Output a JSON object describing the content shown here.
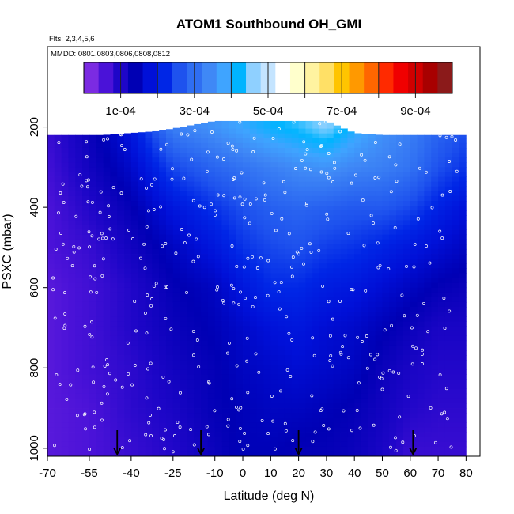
{
  "chart_data": {
    "type": "heatmap",
    "title": "ATOM1 Southbound OH_GMI",
    "subtitle_flights": "Flts: 2,3,4,5,6",
    "subtitle_dates": "MMDD: 0801,0803,0806,0808,0812",
    "xlabel": "Latitude (deg N)",
    "ylabel": "PSXC (mbar)",
    "xlim": [
      -70,
      85
    ],
    "ylim": [
      1020,
      0
    ],
    "x_ticks": [
      -70,
      -55,
      -40,
      -25,
      -10,
      0,
      10,
      20,
      30,
      40,
      50,
      60,
      70,
      80
    ],
    "y_ticks": [
      200,
      400,
      600,
      800,
      1000
    ],
    "colorbar": {
      "min": 0,
      "max": 0.001,
      "tick_values": [
        0.0001,
        0.0003,
        0.0005,
        0.0007,
        0.0009
      ],
      "tick_labels": [
        "1e-04",
        "3e-04",
        "5e-04",
        "7e-04",
        "9e-04"
      ],
      "colors": [
        "#7b2be2",
        "#4a12d8",
        "#1e06c8",
        "#0000b4",
        "#0010d8",
        "#0026e6",
        "#1e52ee",
        "#2f6ef2",
        "#3f88f6",
        "#3fa4ff",
        "#00b4ff",
        "#8fd0ff",
        "#c4e4ff",
        "#ffffff",
        "#ffffcc",
        "#fff3a0",
        "#ffe066",
        "#ffc400",
        "#ff9900",
        "#ff6600",
        "#ff2a00",
        "#f00000",
        "#d00000",
        "#a80000",
        "#8b1a1a"
      ]
    },
    "surface_markers_lat": [
      -45,
      -15,
      20,
      61
    ],
    "top_boundary": {
      "lat": [
        -70,
        -50,
        -30,
        -10,
        10,
        20,
        30,
        40,
        50,
        60,
        70,
        80
      ],
      "pres": [
        220,
        220,
        210,
        185,
        185,
        185,
        185,
        215,
        220,
        220,
        220,
        220
      ]
    },
    "lat_nodes": [
      -70,
      -55,
      -40,
      -25,
      -10,
      0,
      10,
      20,
      30,
      40,
      50,
      60,
      70,
      80
    ],
    "pres_nodes": [
      200,
      300,
      400,
      500,
      600,
      700,
      800,
      900,
      1000
    ],
    "values": [
      [
        6e-05,
        0.00011,
        0.00018,
        0.00032,
        0.00035,
        0.00038,
        0.00041,
        0.00043,
        0.00046,
        0.0004,
        0.00035,
        0.00032,
        0.00028,
        0.00025
      ],
      [
        5e-05,
        0.0001,
        0.00015,
        0.00024,
        0.00028,
        0.0003,
        0.00032,
        0.00034,
        0.00035,
        0.00033,
        0.00032,
        0.0003,
        0.00025,
        0.00022
      ],
      [
        4e-05,
        8e-05,
        0.00012,
        0.00018,
        0.00022,
        0.00025,
        0.00027,
        0.00028,
        0.00027,
        0.00026,
        0.00026,
        0.00024,
        0.0002,
        0.00017
      ],
      [
        4e-05,
        6e-05,
        0.0001,
        0.00014,
        0.00018,
        0.00022,
        0.00024,
        0.00025,
        0.00023,
        0.00022,
        0.0002,
        0.00018,
        0.00016,
        0.00014
      ],
      [
        3e-05,
        5e-05,
        8e-05,
        0.00012,
        0.00014,
        0.00018,
        0.00021,
        0.00021,
        0.00019,
        0.00018,
        0.00016,
        0.00014,
        0.00012,
        0.00011
      ],
      [
        3e-05,
        5e-05,
        8e-05,
        0.00011,
        0.00013,
        0.00015,
        0.00017,
        0.00018,
        0.00016,
        0.00015,
        0.00013,
        0.00011,
        9e-05,
        9e-05
      ],
      [
        3e-05,
        5e-05,
        7e-05,
        0.0001,
        0.00012,
        0.00014,
        0.00015,
        0.00016,
        0.00015,
        0.00014,
        0.00011,
        9e-05,
        8e-05,
        8e-05
      ],
      [
        3e-05,
        4e-05,
        7e-05,
        9e-05,
        0.00012,
        0.00013,
        0.00014,
        0.00014,
        0.00013,
        0.00012,
        0.0001,
        8e-05,
        7e-05,
        7e-05
      ],
      [
        3e-05,
        4e-05,
        6e-05,
        8e-05,
        0.00011,
        0.00013,
        0.00013,
        0.00012,
        0.00012,
        0.00011,
        9e-05,
        6e-05,
        6e-05,
        6e-05
      ]
    ]
  }
}
